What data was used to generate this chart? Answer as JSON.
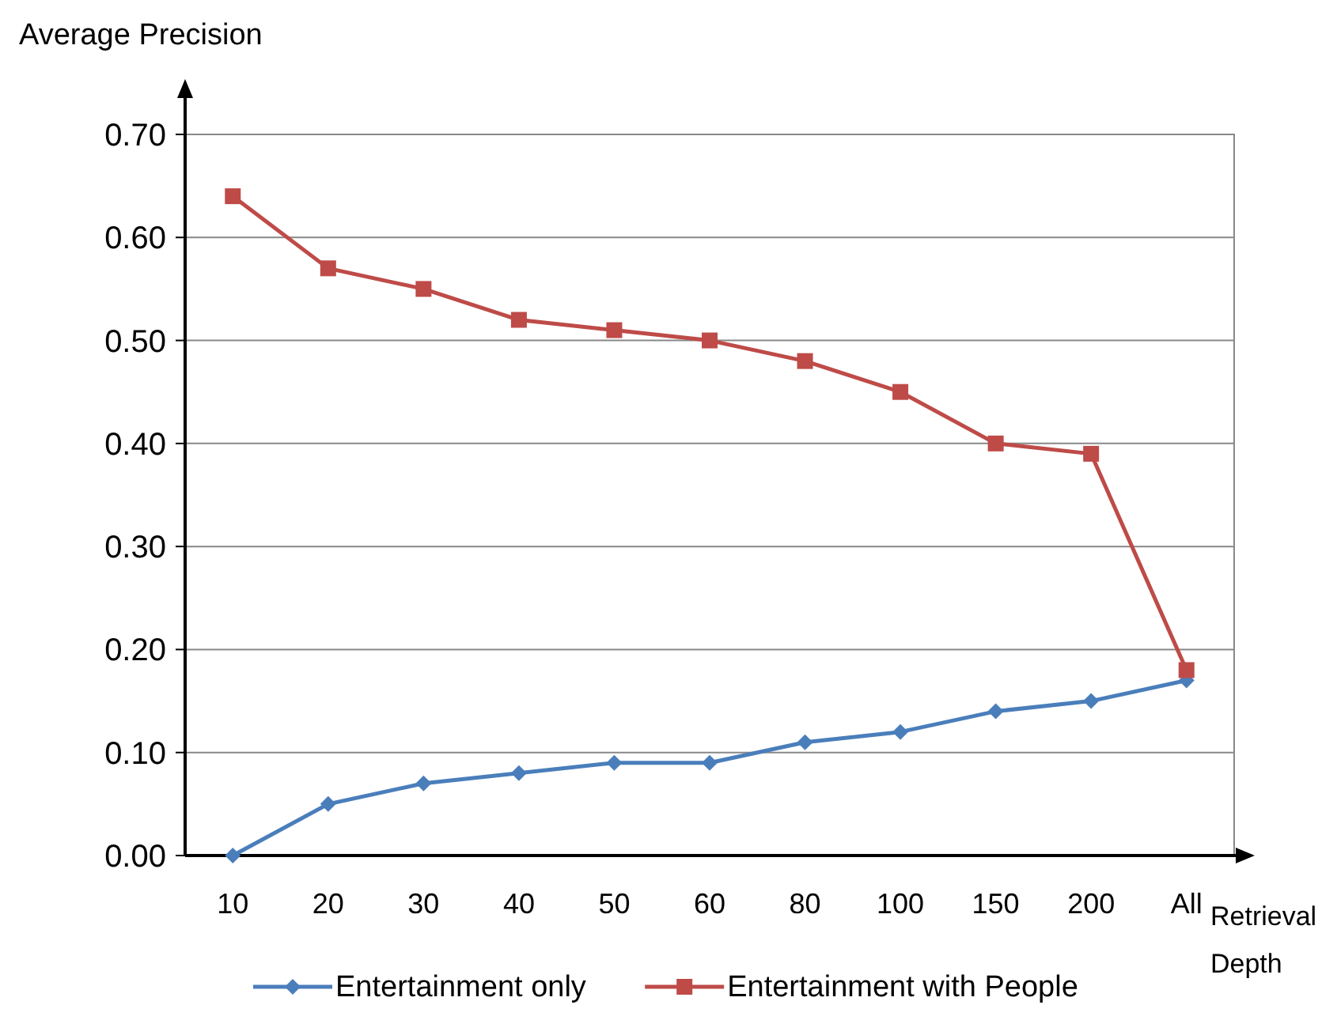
{
  "chart_data": {
    "type": "line",
    "ylabel": "Average Precision",
    "xlabel": "Retrieval Depth",
    "categories": [
      "10",
      "20",
      "30",
      "40",
      "50",
      "60",
      "80",
      "100",
      "150",
      "200",
      "All"
    ],
    "series": [
      {
        "name": "Entertainment only",
        "color": "#4a7ebb",
        "marker": "diamond",
        "values": [
          0.0,
          0.05,
          0.07,
          0.08,
          0.09,
          0.09,
          0.11,
          0.12,
          0.14,
          0.15,
          0.17
        ]
      },
      {
        "name": "Entertainment with People",
        "color": "#be4b48",
        "marker": "square",
        "values": [
          0.64,
          0.57,
          0.55,
          0.52,
          0.51,
          0.5,
          0.48,
          0.45,
          0.4,
          0.39,
          0.18
        ]
      }
    ],
    "ylim": [
      0,
      0.7
    ],
    "yticks": [
      {
        "value": 0,
        "label": "0.00"
      },
      {
        "value": 0.1,
        "label": "0.10"
      },
      {
        "value": 0.2,
        "label": "0.20"
      },
      {
        "value": 0.3,
        "label": "0.30"
      },
      {
        "value": 0.4,
        "label": "0.40"
      },
      {
        "value": 0.5,
        "label": "0.50"
      },
      {
        "value": 0.6,
        "label": "0.60"
      },
      {
        "value": 0.7,
        "label": "0.70"
      }
    ],
    "grid": "y",
    "legend": "bottom"
  }
}
